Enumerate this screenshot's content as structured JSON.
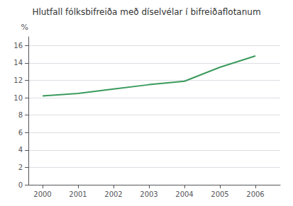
{
  "chart_data": {
    "type": "line",
    "title": "Hlutfall fólksbifreiða með díselvélar í bifreiðaflotanum",
    "ylabel": "%",
    "x": [
      2000,
      2001,
      2002,
      2003,
      2004,
      2005,
      2006
    ],
    "values": [
      10.2,
      10.5,
      11.0,
      11.5,
      11.9,
      13.5,
      14.8
    ],
    "color": "#3a9a5c",
    "xlim": [
      1999.6,
      2006.7
    ],
    "xticks": [
      2000,
      2001,
      2002,
      2003,
      2004,
      2005,
      2006
    ],
    "ylim": [
      0,
      17
    ],
    "yticks": [
      0,
      2,
      4,
      6,
      8,
      10,
      12,
      14,
      16
    ],
    "grid": true
  }
}
